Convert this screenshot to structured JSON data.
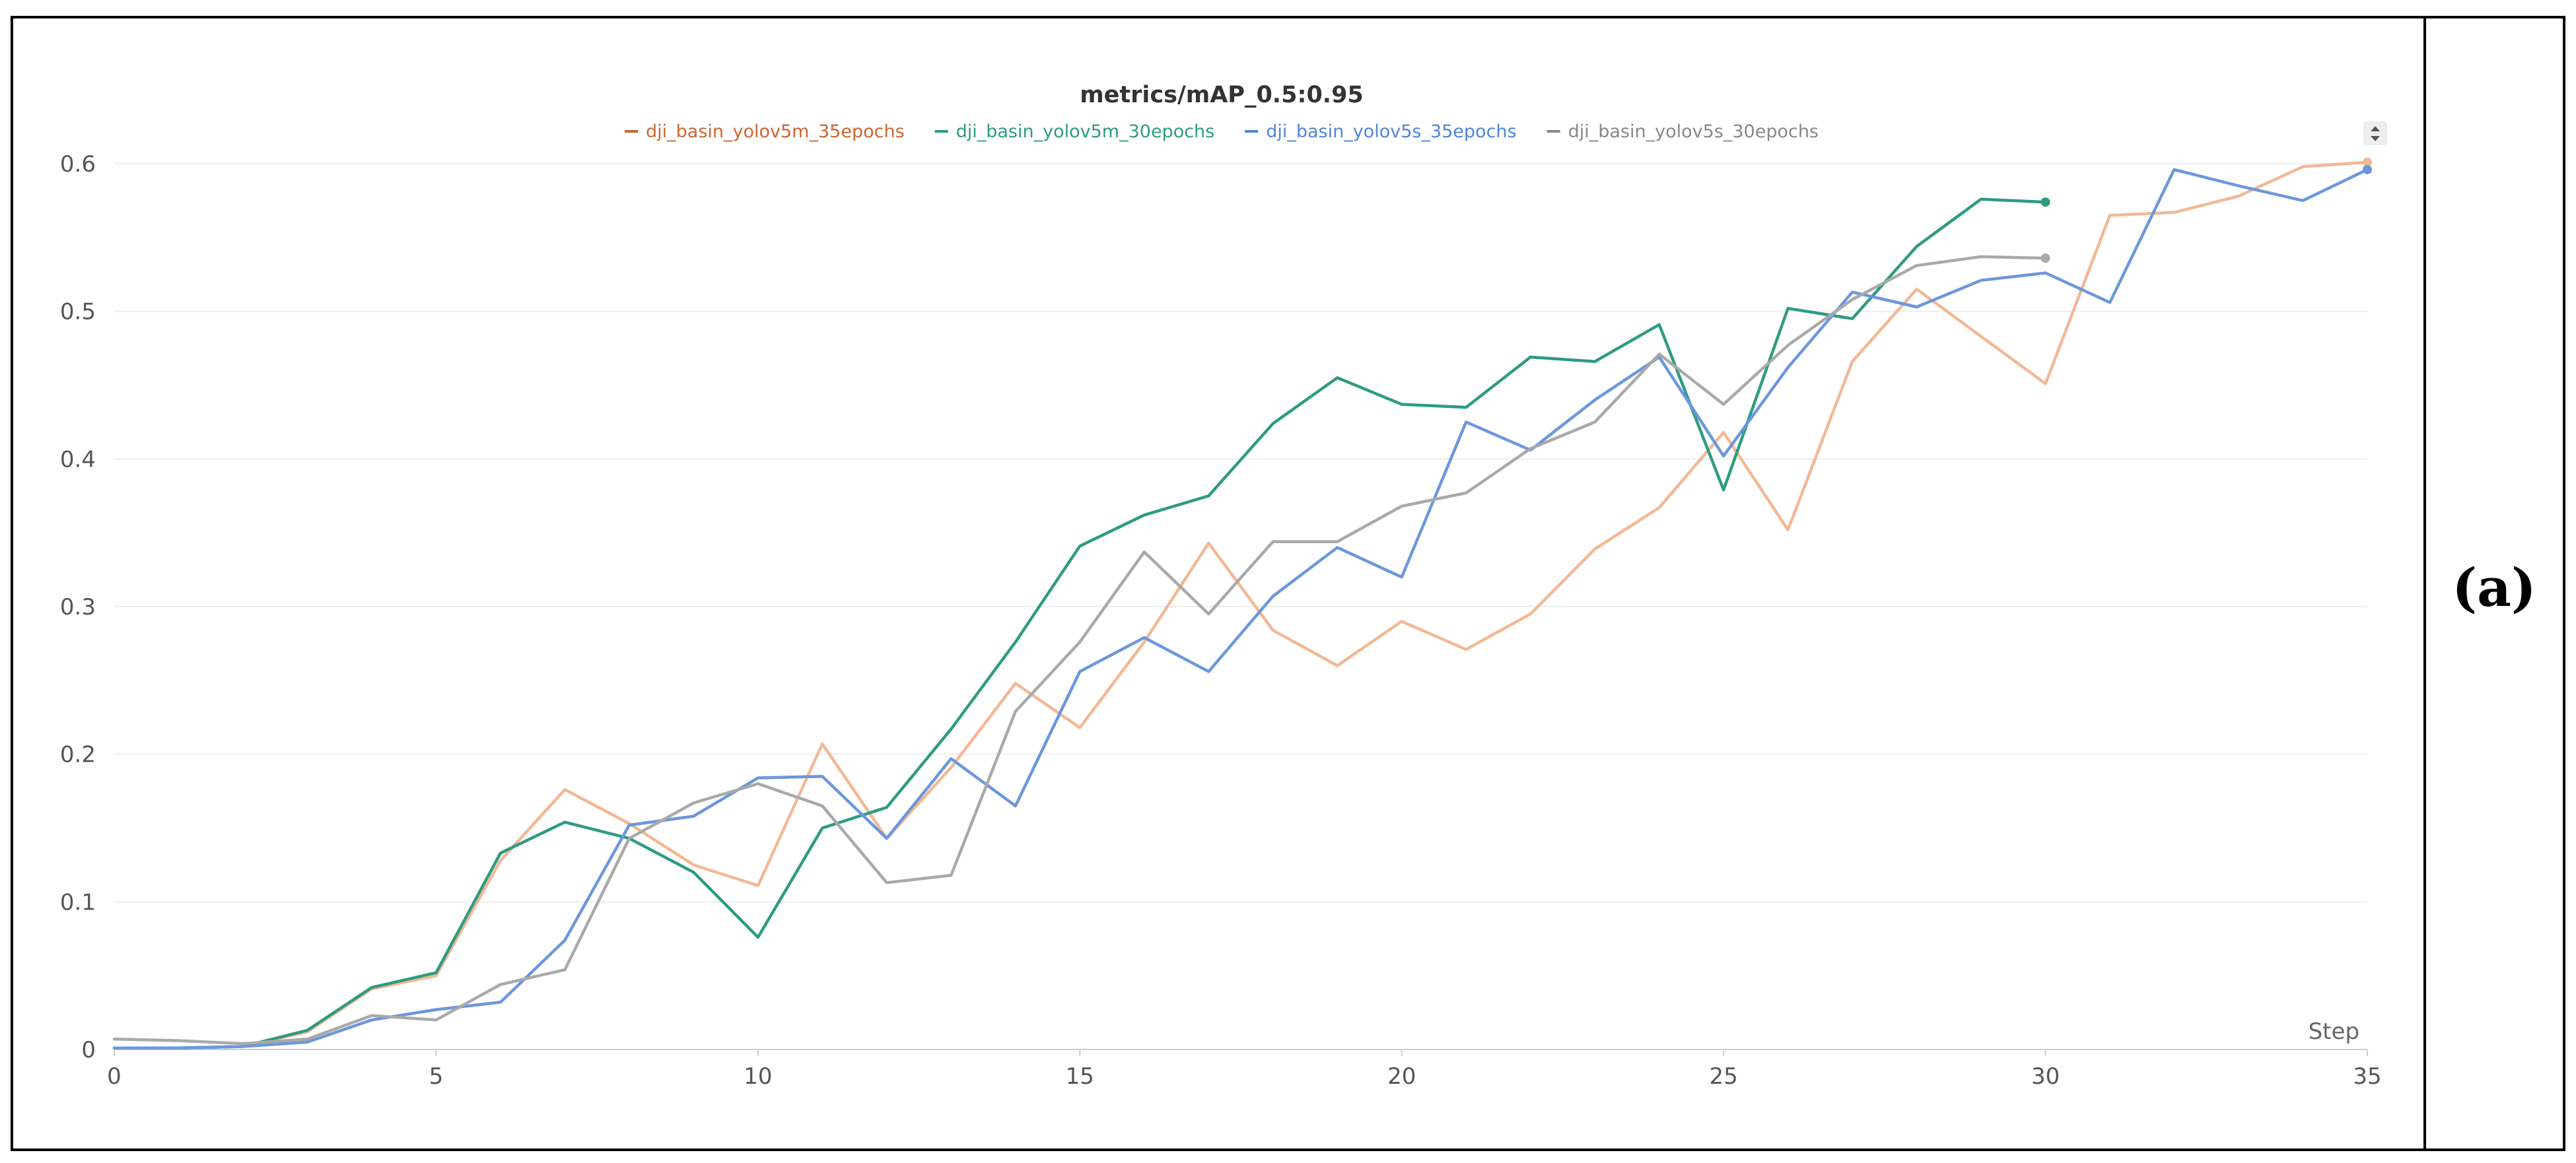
{
  "panel_label": "(a)",
  "chart_data": {
    "type": "line",
    "title": "metrics/mAP_0.5:0.95",
    "xlabel": "Step",
    "ylabel": "",
    "xlim": [
      0,
      35
    ],
    "ylim": [
      0,
      0.6
    ],
    "x_ticks": [
      "0",
      "5",
      "10",
      "15",
      "20",
      "25",
      "30",
      "35"
    ],
    "y_ticks": [
      "0",
      "0.1",
      "0.2",
      "0.3",
      "0.4",
      "0.5",
      "0.6"
    ],
    "grid": "horizontal",
    "legend_position": "top-center",
    "series": [
      {
        "name": "dji_basin_yolov5m_35epochs",
        "color": "#f2b894",
        "legend_color": "#cc6633",
        "x": [
          0,
          1,
          2,
          3,
          4,
          5,
          6,
          7,
          8,
          9,
          10,
          11,
          12,
          13,
          14,
          15,
          16,
          17,
          18,
          19,
          20,
          21,
          22,
          23,
          24,
          25,
          26,
          27,
          28,
          29,
          30,
          31,
          32,
          33,
          34,
          35
        ],
        "values": [
          0.001,
          0.001,
          0.002,
          0.012,
          0.041,
          0.05,
          0.128,
          0.176,
          0.153,
          0.125,
          0.111,
          0.207,
          0.143,
          0.191,
          0.248,
          0.218,
          0.276,
          0.343,
          0.284,
          0.26,
          0.29,
          0.271,
          0.295,
          0.339,
          0.367,
          0.418,
          0.352,
          0.466,
          0.515,
          0.483,
          0.451,
          0.565,
          0.567,
          0.578,
          0.598,
          0.601
        ]
      },
      {
        "name": "dji_basin_yolov5m_30epochs",
        "color": "#2e9b82",
        "legend_color": "#2e9b82",
        "x": [
          0,
          1,
          2,
          3,
          4,
          5,
          6,
          7,
          8,
          9,
          10,
          11,
          12,
          13,
          14,
          15,
          16,
          17,
          18,
          19,
          20,
          21,
          22,
          23,
          24,
          25,
          26,
          27,
          28,
          29,
          30
        ],
        "values": [
          0.001,
          0.001,
          0.002,
          0.013,
          0.042,
          0.052,
          0.133,
          0.154,
          0.143,
          0.12,
          0.076,
          0.15,
          0.164,
          0.217,
          0.276,
          0.341,
          0.362,
          0.375,
          0.424,
          0.455,
          0.437,
          0.435,
          0.469,
          0.466,
          0.491,
          0.379,
          0.502,
          0.495,
          0.544,
          0.576,
          0.574
        ]
      },
      {
        "name": "dji_basin_yolov5s_35epochs",
        "color": "#6b97dc",
        "legend_color": "#4f86d6",
        "x": [
          0,
          1,
          2,
          3,
          4,
          5,
          6,
          7,
          8,
          9,
          10,
          11,
          12,
          13,
          14,
          15,
          16,
          17,
          18,
          19,
          20,
          21,
          22,
          23,
          24,
          25,
          26,
          27,
          28,
          29,
          30,
          31,
          32,
          33,
          34,
          35
        ],
        "values": [
          0.001,
          0.001,
          0.002,
          0.005,
          0.02,
          0.027,
          0.032,
          0.074,
          0.152,
          0.158,
          0.184,
          0.185,
          0.143,
          0.197,
          0.165,
          0.256,
          0.279,
          0.256,
          0.307,
          0.34,
          0.32,
          0.425,
          0.406,
          0.44,
          0.469,
          0.402,
          0.462,
          0.513,
          0.503,
          0.521,
          0.526,
          0.506,
          0.596,
          0.585,
          0.575,
          0.596
        ]
      },
      {
        "name": "dji_basin_yolov5s_30epochs",
        "color": "#a9a9a9",
        "legend_color": "#888888",
        "x": [
          0,
          1,
          2,
          3,
          4,
          5,
          6,
          7,
          8,
          9,
          10,
          11,
          12,
          13,
          14,
          15,
          16,
          17,
          18,
          19,
          20,
          21,
          22,
          23,
          24,
          25,
          26,
          27,
          28,
          29,
          30
        ],
        "values": [
          0.007,
          0.006,
          0.004,
          0.007,
          0.023,
          0.02,
          0.044,
          0.054,
          0.143,
          0.167,
          0.18,
          0.165,
          0.113,
          0.118,
          0.229,
          0.276,
          0.337,
          0.295,
          0.344,
          0.344,
          0.368,
          0.377,
          0.407,
          0.425,
          0.471,
          0.437,
          0.477,
          0.508,
          0.531,
          0.537,
          0.536
        ]
      }
    ]
  }
}
